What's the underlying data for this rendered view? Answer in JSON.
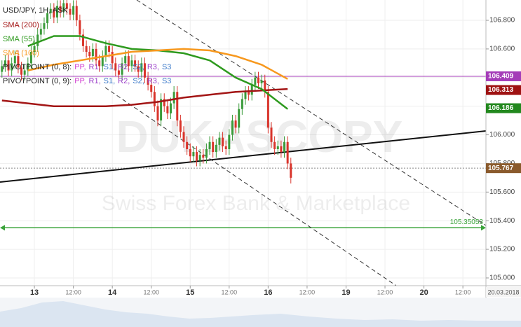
{
  "chart_data": {
    "type": "candlestick",
    "title": "USD/JPY, 1H, ASK",
    "xlim": [
      -10.6,
      139.1
    ],
    "ylim": [
      104.946,
      106.942
    ],
    "xticks": [
      {
        "value": 0,
        "label": "13"
      },
      {
        "value": 12,
        "label": "12:00"
      },
      {
        "value": 24,
        "label": "14"
      },
      {
        "value": 36,
        "label": "12:00"
      },
      {
        "value": 48,
        "label": "15"
      },
      {
        "value": 60,
        "label": "12:00"
      },
      {
        "value": 72,
        "label": "16"
      },
      {
        "value": 84,
        "label": "12:00"
      },
      {
        "value": 96,
        "label": "19"
      },
      {
        "value": 108,
        "label": "12:00"
      },
      {
        "value": 120,
        "label": "20"
      },
      {
        "value": 132,
        "label": "12:00"
      }
    ],
    "yticks": [
      {
        "value": 105.0,
        "label": "105.000"
      },
      {
        "value": 105.2,
        "label": "105.200"
      },
      {
        "value": 105.4,
        "label": "105.400"
      },
      {
        "value": 105.6,
        "label": "105.600"
      },
      {
        "value": 105.8,
        "label": "105.800"
      },
      {
        "value": 106.0,
        "label": "106.000"
      },
      {
        "value": 106.2,
        "label": "106.200"
      },
      {
        "value": 106.4,
        "label": "106.400"
      },
      {
        "value": 106.6,
        "label": "106.600"
      },
      {
        "value": 106.8,
        "label": "106.800"
      }
    ],
    "date_label": "20.03.2018",
    "grid": true,
    "up_color": "#3a9b3a",
    "down_color": "#d9342b",
    "x": [
      -10,
      -9,
      -8,
      -7,
      -6,
      -5,
      -4,
      -3,
      -2,
      -1,
      0,
      1,
      2,
      3,
      4,
      5,
      6,
      7,
      8,
      9,
      10,
      11,
      12,
      13,
      14,
      15,
      16,
      17,
      18,
      19,
      20,
      21,
      22,
      23,
      24,
      25,
      26,
      27,
      28,
      29,
      30,
      31,
      32,
      33,
      34,
      35,
      36,
      37,
      38,
      39,
      40,
      41,
      42,
      43,
      44,
      45,
      46,
      47,
      48,
      49,
      50,
      51,
      52,
      53,
      54,
      55,
      56,
      57,
      58,
      59,
      60,
      61,
      62,
      63,
      64,
      65,
      66,
      67,
      68,
      69,
      70,
      71,
      72,
      73,
      74,
      75,
      76,
      77,
      78,
      79
    ],
    "open": [
      106.44,
      106.48,
      106.52,
      106.45,
      106.5,
      106.55,
      106.47,
      106.42,
      106.45,
      106.5,
      106.58,
      106.62,
      106.7,
      106.74,
      106.78,
      106.85,
      106.88,
      106.82,
      106.9,
      106.86,
      106.92,
      106.88,
      106.84,
      106.9,
      106.8,
      106.7,
      106.62,
      106.58,
      106.55,
      106.6,
      106.52,
      106.48,
      106.55,
      106.62,
      106.58,
      106.5,
      106.45,
      106.42,
      106.5,
      106.55,
      106.48,
      106.52,
      106.48,
      106.44,
      106.5,
      106.4,
      106.35,
      106.3,
      106.2,
      106.1,
      106.25,
      106.2,
      106.15,
      106.22,
      106.3,
      106.1,
      106.02,
      105.95,
      105.9,
      105.85,
      105.88,
      105.82,
      105.86,
      105.84,
      105.9,
      105.95,
      105.88,
      105.93,
      105.98,
      105.92,
      105.9,
      106.0,
      106.1,
      106.05,
      106.18,
      106.25,
      106.3,
      106.28,
      106.35,
      106.4,
      106.36,
      106.38,
      106.3,
      106.05,
      105.95,
      105.9,
      105.92,
      105.88,
      105.95,
      105.8
    ],
    "high": [
      106.52,
      106.56,
      106.56,
      106.54,
      106.59,
      106.59,
      106.51,
      106.49,
      106.54,
      106.62,
      106.66,
      106.74,
      106.78,
      106.82,
      106.89,
      106.92,
      106.92,
      106.94,
      106.94,
      106.96,
      106.96,
      106.92,
      106.94,
      106.94,
      106.84,
      106.74,
      106.66,
      106.62,
      106.64,
      106.64,
      106.56,
      106.59,
      106.66,
      106.66,
      106.62,
      106.54,
      106.49,
      106.54,
      106.59,
      106.59,
      106.56,
      106.56,
      106.52,
      106.54,
      106.54,
      106.44,
      106.39,
      106.34,
      106.24,
      106.29,
      106.29,
      106.24,
      106.26,
      106.34,
      106.34,
      106.14,
      106.06,
      105.99,
      105.94,
      105.92,
      105.92,
      105.9,
      105.9,
      105.94,
      105.99,
      105.99,
      105.97,
      106.02,
      106.02,
      105.96,
      106.04,
      106.14,
      106.14,
      106.22,
      106.29,
      106.34,
      106.34,
      106.39,
      106.44,
      106.44,
      106.42,
      106.42,
      106.34,
      106.09,
      105.99,
      105.96,
      105.96,
      105.99,
      105.99,
      105.84
    ],
    "low": [
      106.4,
      106.44,
      106.41,
      106.41,
      106.46,
      106.43,
      106.38,
      106.38,
      106.41,
      106.46,
      106.54,
      106.58,
      106.66,
      106.7,
      106.74,
      106.81,
      106.78,
      106.78,
      106.82,
      106.82,
      106.84,
      106.8,
      106.8,
      106.76,
      106.66,
      106.58,
      106.54,
      106.51,
      106.51,
      106.48,
      106.44,
      106.44,
      106.51,
      106.54,
      106.46,
      106.41,
      106.38,
      106.38,
      106.46,
      106.44,
      106.44,
      106.44,
      106.4,
      106.4,
      106.36,
      106.31,
      106.26,
      106.16,
      106.06,
      106.06,
      106.16,
      106.11,
      106.11,
      106.18,
      106.06,
      105.98,
      105.91,
      105.86,
      105.81,
      105.81,
      105.78,
      105.78,
      105.8,
      105.8,
      105.86,
      105.84,
      105.84,
      105.89,
      105.88,
      105.86,
      105.86,
      105.96,
      106.01,
      106.01,
      106.14,
      106.21,
      106.24,
      106.24,
      106.31,
      106.32,
      106.32,
      106.26,
      106.01,
      105.91,
      105.86,
      105.86,
      105.84,
      105.84,
      105.76,
      105.66
    ],
    "close": [
      106.48,
      106.52,
      106.45,
      106.5,
      106.55,
      106.47,
      106.42,
      106.45,
      106.5,
      106.58,
      106.62,
      106.7,
      106.74,
      106.78,
      106.85,
      106.88,
      106.82,
      106.9,
      106.86,
      106.92,
      106.88,
      106.84,
      106.9,
      106.8,
      106.7,
      106.62,
      106.58,
      106.55,
      106.6,
      106.52,
      106.48,
      106.55,
      106.62,
      106.58,
      106.5,
      106.45,
      106.42,
      106.5,
      106.55,
      106.48,
      106.52,
      106.48,
      106.44,
      106.5,
      106.4,
      106.35,
      106.3,
      106.2,
      106.1,
      106.25,
      106.2,
      106.15,
      106.22,
      106.3,
      106.1,
      106.02,
      105.95,
      105.9,
      105.85,
      105.88,
      105.82,
      105.86,
      105.84,
      105.9,
      105.95,
      105.88,
      105.93,
      105.98,
      105.92,
      105.9,
      106.0,
      106.1,
      106.05,
      106.18,
      106.25,
      106.3,
      106.28,
      106.35,
      106.4,
      106.36,
      106.38,
      106.3,
      106.05,
      105.95,
      105.9,
      105.92,
      105.88,
      105.95,
      105.8,
      105.7
    ],
    "series": [
      {
        "name": "SMA (200)",
        "color": "#a31515",
        "x": [
          -10,
          -2,
          6,
          14,
          22,
          30,
          38,
          46,
          54,
          62,
          70,
          78
        ],
        "values": [
          106.24,
          106.22,
          106.2,
          106.2,
          106.2,
          106.21,
          106.23,
          106.26,
          106.28,
          106.3,
          106.31,
          106.32
        ]
      },
      {
        "name": "SMA (55)",
        "color": "#2e9a1e",
        "x": [
          -2,
          6,
          14,
          22,
          30,
          38,
          46,
          54,
          62,
          70,
          78
        ],
        "values": [
          106.62,
          106.69,
          106.69,
          106.64,
          106.6,
          106.59,
          106.57,
          106.52,
          106.4,
          106.32,
          106.18
        ]
      },
      {
        "name": "SMA (100)",
        "color": "#f7981d",
        "x": [
          -2,
          6,
          14,
          22,
          30,
          38,
          46,
          54,
          62,
          70,
          78
        ],
        "values": [
          106.45,
          106.49,
          106.52,
          106.55,
          106.58,
          106.59,
          106.6,
          106.59,
          106.55,
          106.49,
          106.39
        ]
      }
    ],
    "pivot_legends": [
      {
        "prefix": "PIVOTPOINT (0, 8):",
        "items": [
          "PP,",
          "R1,",
          "S1,",
          "R2,",
          "S2,",
          "R3,",
          "S3"
        ]
      },
      {
        "prefix": "PIVOTPOINT (0, 9):",
        "items": [
          "PP,",
          "R1,",
          "S1,",
          "R2,",
          "S2,",
          "R3,",
          "S3"
        ]
      }
    ],
    "pivot_colors": [
      "#d23fd2",
      "#9b3fc9",
      "#3a78c9",
      "#9b3fc9",
      "#3a78c9",
      "#9b3fc9",
      "#3a78c9"
    ],
    "price_levels": [
      {
        "value": 106.409,
        "color": "#a43cb8",
        "line": "solid"
      },
      {
        "value": 106.313,
        "color": "#9e1212"
      },
      {
        "value": 106.186,
        "color": "#22881e"
      },
      {
        "value": 105.767,
        "color": "#8a5a2c",
        "line": "dashed"
      }
    ],
    "target_line": {
      "value": 105.35053,
      "color": "#3aa33a"
    },
    "watermark": {
      "logo": "DUKASCOPY",
      "tagline": "Swiss Forex Bank & Marketplace"
    }
  }
}
